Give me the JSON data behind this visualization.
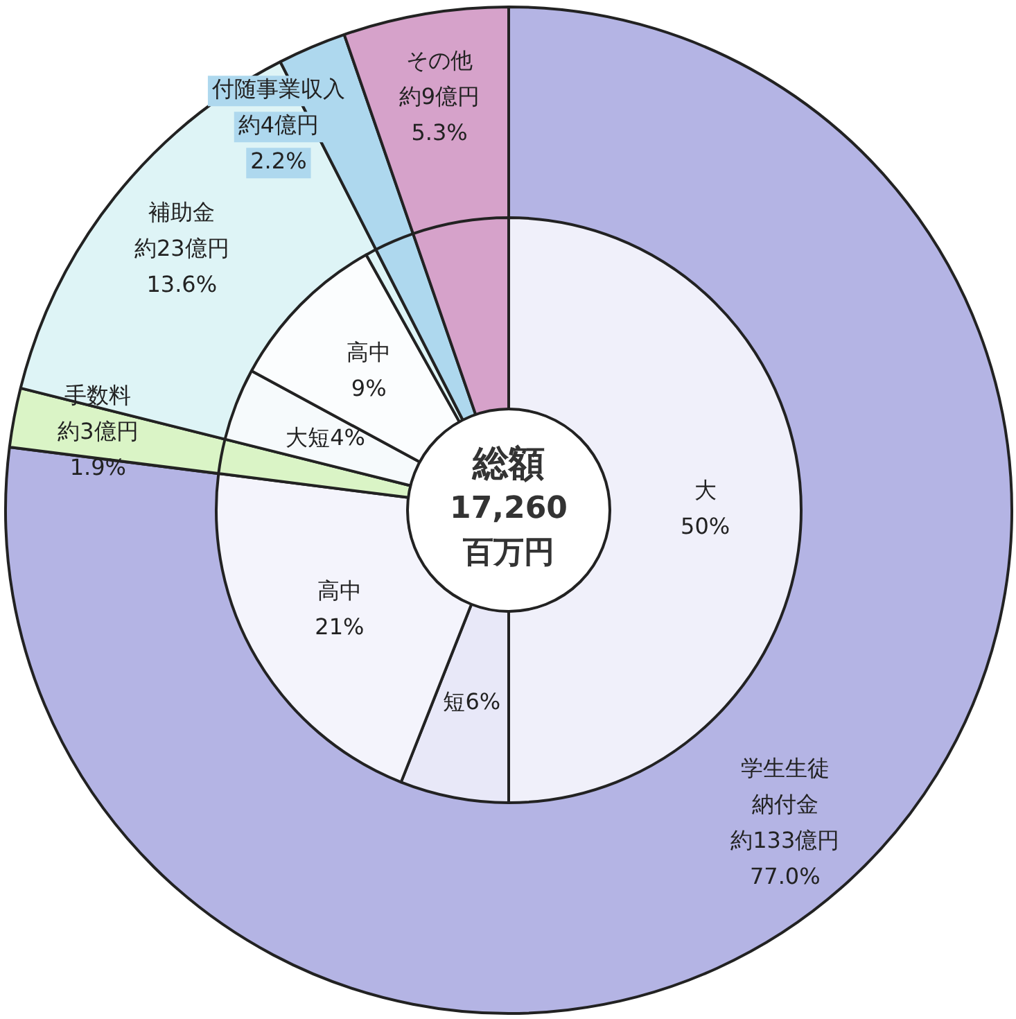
{
  "chart_data": [
    {
      "type": "donut",
      "categories": [
        "学生生徒納付金",
        "手数料",
        "補助金",
        "付随事業収入",
        "その他"
      ],
      "values": [
        77.0,
        1.9,
        13.6,
        2.2,
        5.3
      ],
      "colors": [
        "#b4b4e4",
        "#daf4c6",
        "#def4f6",
        "#aed8ee",
        "#d6a2ca"
      ],
      "value_labels": [
        "約133億円\n77.0%",
        "約3億円\n1.9%",
        "約23億円\n13.6%",
        "約4億円\n2.2%",
        "約9億円\n5.3%"
      ]
    },
    {
      "type": "donut",
      "categories": [
        "大",
        "短",
        "高中",
        null,
        "大短",
        "高中",
        null,
        null,
        null
      ],
      "values": [
        50,
        6,
        21,
        1.9,
        4,
        9,
        0.6,
        2.2,
        5.3
      ],
      "colors": [
        "#f0f0fa",
        "#e8e8f8",
        "#f4f4fc",
        "#daf4c6",
        "#f6fafc",
        "#fbfdfe",
        "#def4f6",
        "#aed8ee",
        "#d6a2ca"
      ],
      "value_labels": [
        "50%",
        "6%",
        "21%",
        null,
        "4%",
        "9%",
        null,
        null,
        null
      ],
      "annotations": [
        "総額\n17,260\n百万円"
      ]
    }
  ]
}
